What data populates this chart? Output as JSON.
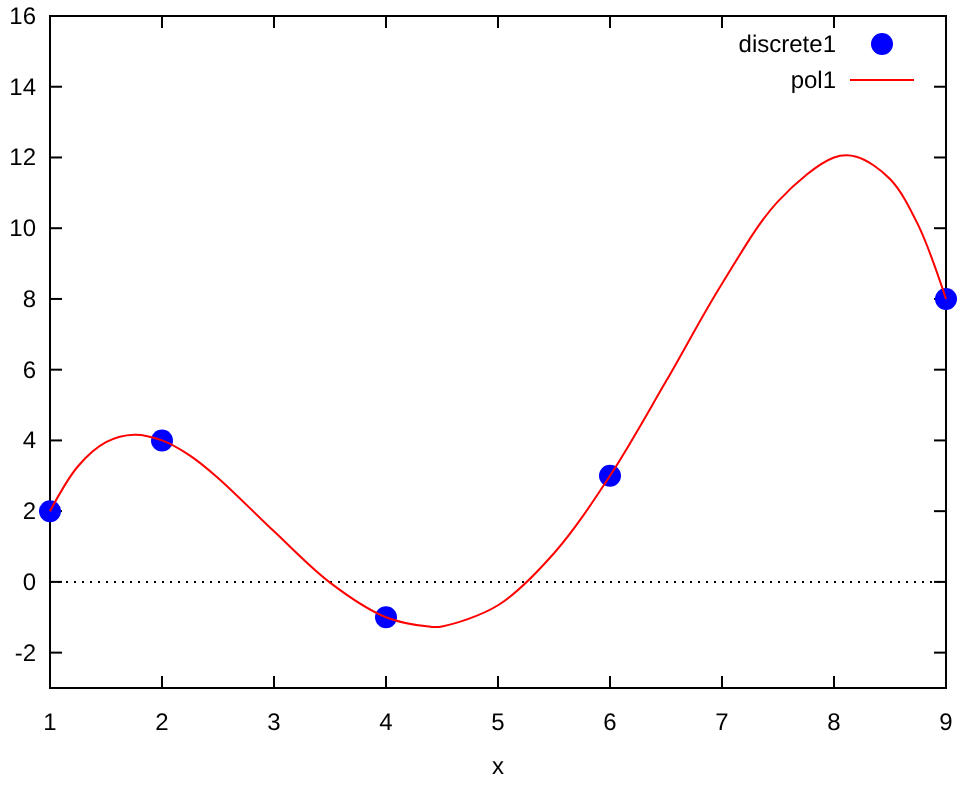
{
  "chart_data": {
    "type": "scatter",
    "xlabel": "x",
    "xlim": [
      1,
      9
    ],
    "ylim": [
      -3,
      16
    ],
    "xticks": [
      1,
      2,
      3,
      4,
      5,
      6,
      7,
      8,
      9
    ],
    "yticks": [
      -2,
      0,
      2,
      4,
      6,
      8,
      10,
      12,
      14,
      16
    ],
    "grid": false,
    "legend": "top right",
    "ref_lines": [
      {
        "axis": "y",
        "value": 0,
        "color": "#000000",
        "line_style": "dotted"
      }
    ],
    "series": [
      {
        "name": "discrete1",
        "marker": "circle",
        "color": "#0000ff",
        "x": [
          1,
          2,
          4,
          6,
          9
        ],
        "values": [
          2,
          4,
          -1,
          3,
          8
        ]
      },
      {
        "name": "pol1",
        "type": "line",
        "marker": "none",
        "line_style": "solid",
        "color": "#ff0000",
        "x": [
          1,
          1.25,
          1.5,
          1.75,
          2,
          2.25,
          2.5,
          3,
          3.5,
          4,
          4.4,
          4.5,
          5,
          5.5,
          6,
          6.5,
          7,
          7.5,
          8,
          8.2,
          8.5,
          8.75,
          9
        ],
        "values": [
          2,
          3.27,
          3.95,
          4.16,
          4,
          3.57,
          2.94,
          1.43,
          -0.02,
          -1,
          -1.27,
          -1.26,
          -0.66,
          0.81,
          3,
          5.67,
          8.43,
          10.76,
          12,
          12.02,
          11.39,
          10.1,
          8
        ]
      }
    ]
  }
}
